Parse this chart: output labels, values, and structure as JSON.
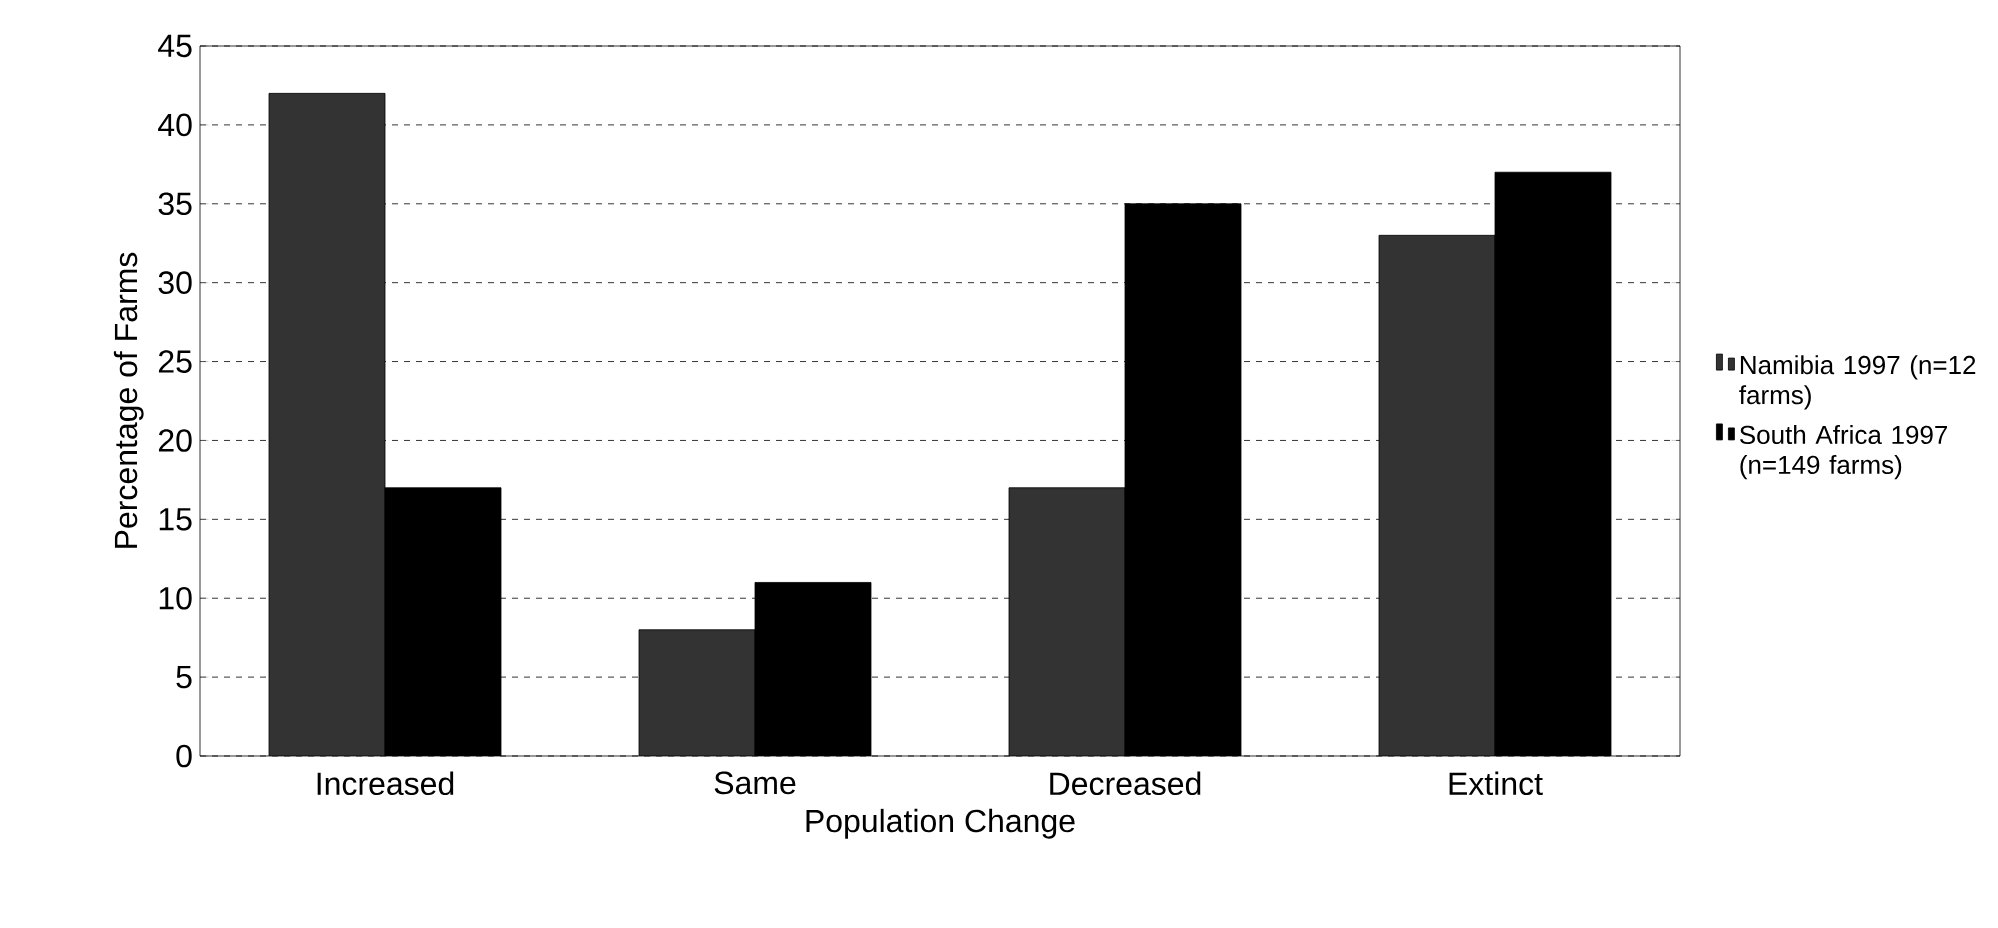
{
  "chart_data": {
    "type": "bar",
    "xlabel": "Population Change",
    "ylabel": "Percentage of Farms",
    "categories": [
      "Increased",
      "Same",
      "Decreased",
      "Extinct"
    ],
    "series": [
      {
        "name": "Namibia 1997 (n=12 farms)",
        "color": "#333333",
        "values": [
          42,
          8,
          17,
          33
        ]
      },
      {
        "name": "South Africa 1997 (n=149 farms)",
        "color": "#000000",
        "values": [
          17,
          11,
          35,
          37
        ]
      }
    ],
    "ylim": [
      0,
      45
    ],
    "yticks": [
      0,
      5,
      10,
      15,
      20,
      25,
      30,
      35,
      40,
      45
    ],
    "grid": "y",
    "legend": "right"
  }
}
